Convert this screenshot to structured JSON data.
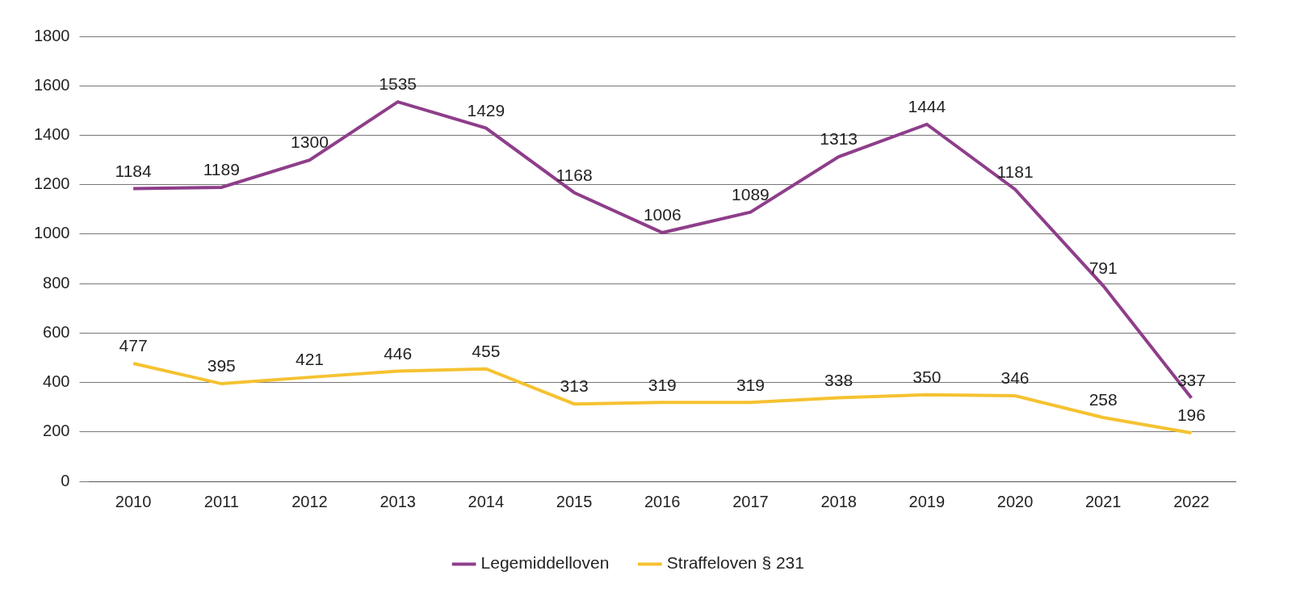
{
  "chart_data": {
    "type": "line",
    "categories": [
      "2010",
      "2011",
      "2012",
      "2013",
      "2014",
      "2015",
      "2016",
      "2017",
      "2018",
      "2019",
      "2020",
      "2021",
      "2022"
    ],
    "series": [
      {
        "name": "Legemiddelloven",
        "color": "#8e3e8a",
        "values": [
          1184,
          1189,
          1300,
          1535,
          1429,
          1168,
          1006,
          1089,
          1313,
          1444,
          1181,
          791,
          337
        ]
      },
      {
        "name": "Straffeloven § 231",
        "color": "#f5c231",
        "values": [
          477,
          395,
          421,
          446,
          455,
          313,
          319,
          319,
          338,
          350,
          346,
          258,
          196
        ]
      }
    ],
    "ylim": [
      0,
      1800
    ],
    "yticks": [
      0,
      200,
      400,
      600,
      800,
      1000,
      1200,
      1400,
      1600,
      1800
    ],
    "grid": true,
    "legend": "bottom",
    "data_labels": true
  }
}
